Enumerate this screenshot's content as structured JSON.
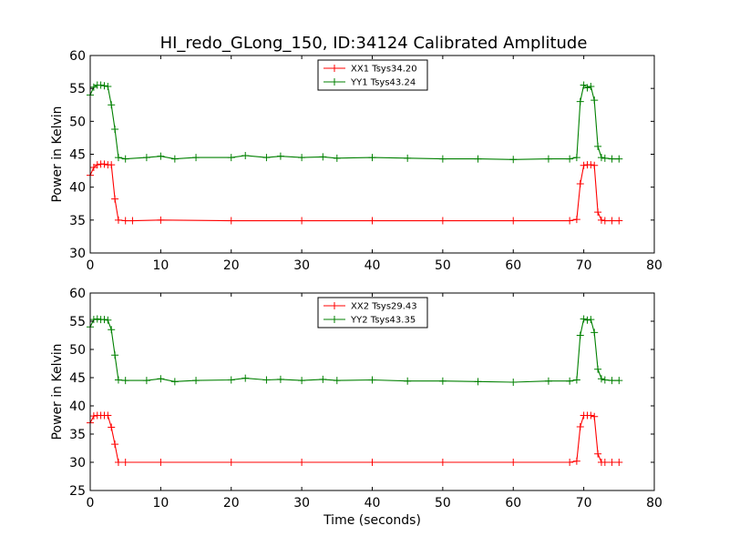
{
  "figure": {
    "title": "HI_redo_GLong_150, ID:34124 Calibrated Amplitude"
  },
  "chart_data": [
    {
      "type": "line",
      "title": "HI_redo_GLong_150, ID:34124 Calibrated Amplitude",
      "xlabel": "",
      "ylabel": "Power in Kelvin",
      "xlim": [
        0,
        80
      ],
      "ylim": [
        30,
        60
      ],
      "xticks": [
        0,
        10,
        20,
        30,
        40,
        50,
        60,
        70,
        80
      ],
      "yticks": [
        30,
        35,
        40,
        45,
        50,
        55,
        60
      ],
      "grid": false,
      "legend_position": "top-center",
      "marker": "+",
      "series": [
        {
          "name": "XX1 Tsys34.20",
          "color": "#ff0000",
          "x": [
            0,
            0.5,
            1,
            1.5,
            2,
            2.5,
            3,
            3.5,
            4,
            5,
            6,
            10,
            20,
            30,
            40,
            50,
            60,
            68,
            69,
            69.5,
            70,
            70.5,
            71,
            71.5,
            72,
            72.5,
            73,
            74,
            75
          ],
          "y": [
            41.8,
            43,
            43.4,
            43.5,
            43.5,
            43.4,
            43.4,
            38.2,
            35,
            34.9,
            34.9,
            35,
            34.9,
            34.9,
            34.9,
            34.9,
            34.9,
            34.9,
            35.1,
            40.5,
            43.3,
            43.4,
            43.4,
            43.3,
            36.2,
            35,
            34.9,
            34.9,
            34.9
          ]
        },
        {
          "name": "YY1 Tsys43.24",
          "color": "#008000",
          "x": [
            0,
            0.5,
            1,
            1.5,
            2,
            2.5,
            3,
            3.5,
            4,
            5,
            8,
            10,
            12,
            15,
            20,
            22,
            25,
            27,
            30,
            33,
            35,
            40,
            45,
            50,
            55,
            60,
            65,
            68,
            69,
            69.5,
            70,
            70.5,
            71,
            71.5,
            72,
            72.5,
            73,
            74,
            75
          ],
          "y": [
            54,
            55.2,
            55.5,
            55.5,
            55.4,
            55.3,
            52.5,
            48.8,
            44.5,
            44.3,
            44.5,
            44.7,
            44.3,
            44.5,
            44.5,
            44.8,
            44.5,
            44.7,
            44.5,
            44.6,
            44.4,
            44.5,
            44.4,
            44.3,
            44.3,
            44.2,
            44.3,
            44.3,
            44.5,
            53,
            55.5,
            55.1,
            55.3,
            53.2,
            46.2,
            44.5,
            44.4,
            44.3,
            44.3
          ]
        }
      ]
    },
    {
      "type": "line",
      "title": "",
      "xlabel": "Time (seconds)",
      "ylabel": "Power in Kelvin",
      "xlim": [
        0,
        80
      ],
      "ylim": [
        25,
        60
      ],
      "xticks": [
        0,
        10,
        20,
        30,
        40,
        50,
        60,
        70,
        80
      ],
      "yticks": [
        25,
        30,
        35,
        40,
        45,
        50,
        55,
        60
      ],
      "grid": false,
      "legend_position": "top-center",
      "marker": "+",
      "series": [
        {
          "name": "XX2 Tsys29.43",
          "color": "#ff0000",
          "x": [
            0,
            0.5,
            1,
            1.5,
            2,
            2.5,
            3,
            3.5,
            4,
            5,
            10,
            20,
            30,
            40,
            50,
            60,
            68,
            69,
            69.5,
            70,
            70.5,
            71,
            71.5,
            72,
            72.5,
            73,
            74,
            75
          ],
          "y": [
            37,
            38.2,
            38.3,
            38.3,
            38.3,
            38.3,
            36.2,
            33.2,
            30,
            30,
            30,
            30,
            30,
            30,
            30,
            30,
            30,
            30.2,
            36.3,
            38.3,
            38.3,
            38.3,
            38.1,
            31.5,
            30,
            30,
            30,
            30
          ]
        },
        {
          "name": "YY2 Tsys43.35",
          "color": "#008000",
          "x": [
            0,
            0.5,
            1,
            1.5,
            2,
            2.5,
            3,
            3.5,
            4,
            5,
            8,
            10,
            12,
            15,
            20,
            22,
            25,
            27,
            30,
            33,
            35,
            40,
            45,
            50,
            55,
            60,
            65,
            68,
            69,
            69.5,
            70,
            70.5,
            71,
            71.5,
            72,
            72.5,
            73,
            74,
            75
          ],
          "y": [
            54,
            55.3,
            55.4,
            55.3,
            55.3,
            55.2,
            53.5,
            49,
            44.6,
            44.5,
            44.5,
            44.8,
            44.3,
            44.5,
            44.6,
            44.9,
            44.6,
            44.7,
            44.5,
            44.7,
            44.5,
            44.6,
            44.4,
            44.4,
            44.3,
            44.2,
            44.4,
            44.4,
            44.6,
            52.5,
            55.4,
            55.2,
            55.3,
            53,
            46.5,
            44.8,
            44.6,
            44.5,
            44.5
          ]
        }
      ]
    }
  ]
}
